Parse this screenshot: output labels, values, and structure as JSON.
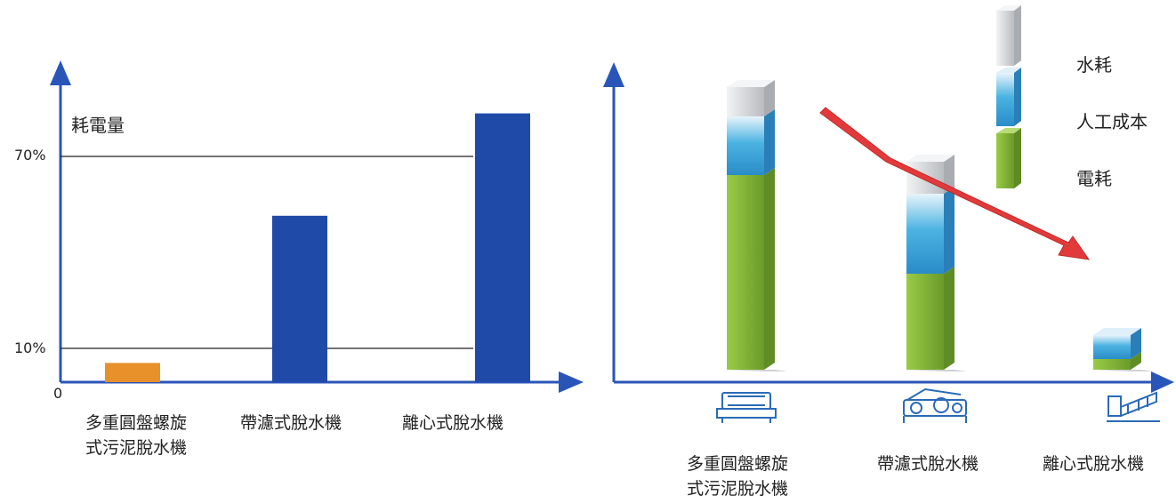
{
  "charts": {
    "left": {
      "ylabel": "耗電量",
      "ticks": [
        {
          "value": 0,
          "label": "0"
        },
        {
          "value": 10,
          "label": "10%"
        },
        {
          "value": 70,
          "label": "70%"
        }
      ],
      "categories": [
        {
          "line1": "多重圓盤螺旋",
          "line2": "式污泥脫水機"
        },
        {
          "line1": "帶濾式脫水機",
          "line2": ""
        },
        {
          "line1": "離心式脫水機",
          "line2": ""
        }
      ]
    },
    "right": {
      "legend": [
        "水耗",
        "人工成本",
        "電耗"
      ],
      "categories": [
        {
          "line1": "多重圓盤螺旋",
          "line2": "式污泥脫水機"
        },
        {
          "line1": "帶濾式脫水機",
          "line2": ""
        },
        {
          "line1": "離心式脫水機",
          "line2": ""
        }
      ]
    }
  },
  "colors": {
    "axis": "#2a55b8",
    "bar_orange": "#e8902a",
    "bar_blue": "#1f4aa8",
    "water": "#d4d6d8",
    "labor": "#3ba6d8",
    "power": "#86b83a",
    "arrow": "#e23a3a"
  },
  "icons": [
    "disc-screw-press-icon",
    "belt-filter-press-icon",
    "centrifuge-icon"
  ],
  "chart_data": [
    {
      "type": "bar",
      "ylabel": "耗電量",
      "categories": [
        "多重圓盤螺旋式污泥脫水機",
        "帶濾式脫水機",
        "離心式脫水機"
      ],
      "values": [
        6,
        52,
        84
      ],
      "ylim": [
        0,
        100
      ],
      "gridlines": [
        10,
        70
      ],
      "grid": false
    },
    {
      "type": "bar",
      "stacked": true,
      "categories": [
        "多重圓盤螺旋式污泥脫水機",
        "帶濾式脫水機",
        "離心式脫水機"
      ],
      "series": [
        {
          "name": "電耗",
          "values": [
            73,
            36,
            4
          ]
        },
        {
          "name": "人工成本",
          "values": [
            22,
            30,
            9
          ]
        },
        {
          "name": "水耗",
          "values": [
            11,
            12,
            0
          ]
        }
      ],
      "legend": "top-right",
      "trend_arrow": "decreasing"
    }
  ]
}
